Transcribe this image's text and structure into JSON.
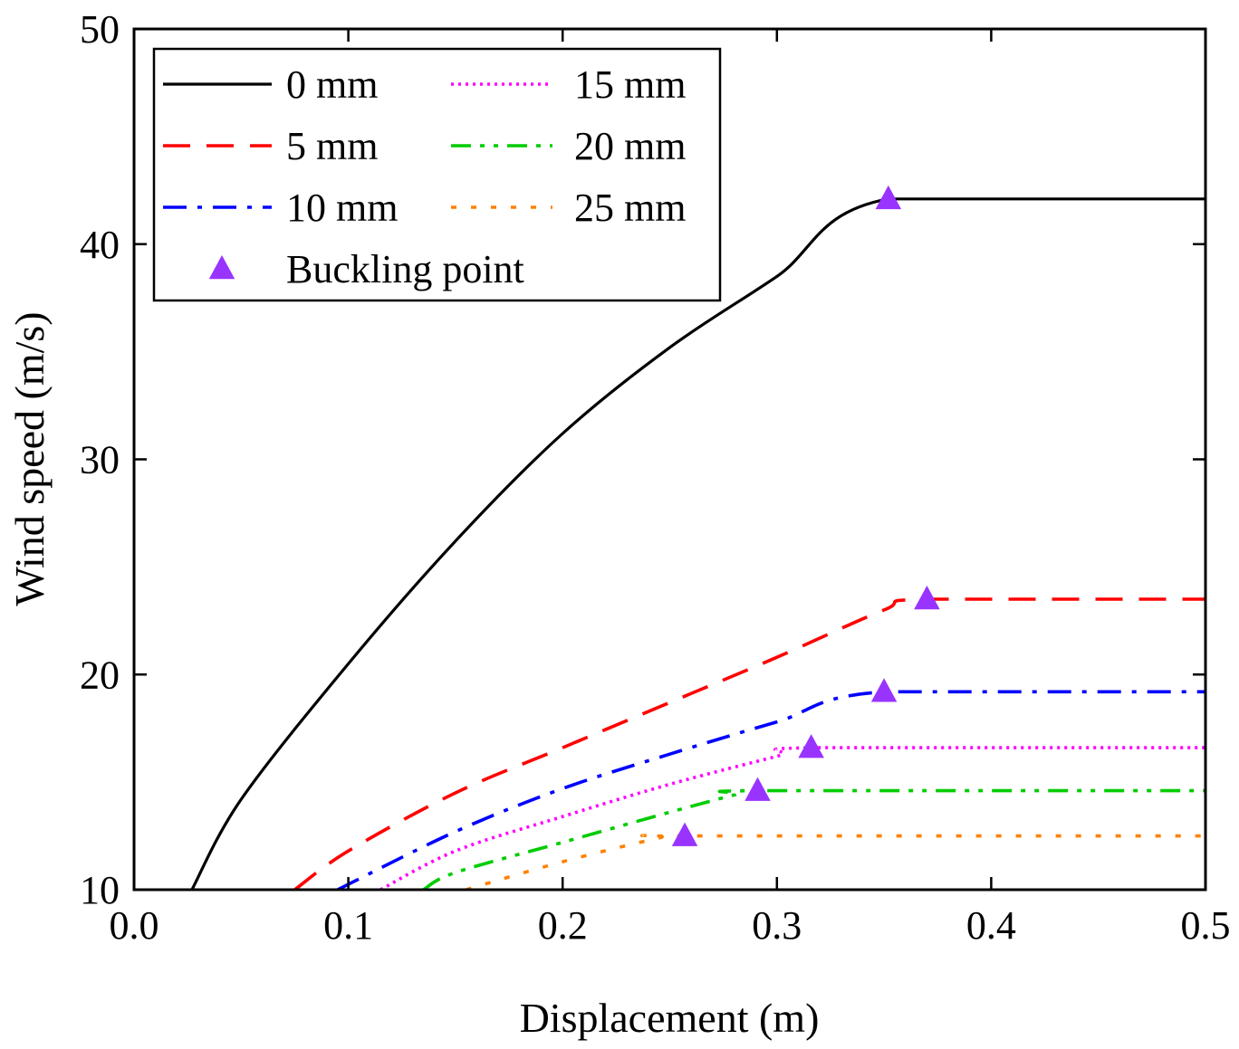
{
  "chart_data": {
    "type": "line",
    "title": "",
    "xlabel": "Displacement (m)",
    "ylabel": "Wind speed (m/s)",
    "xlim": [
      0.0,
      0.5
    ],
    "ylim": [
      10,
      50
    ],
    "xticks": [
      0.0,
      0.1,
      0.2,
      0.3,
      0.4,
      0.5
    ],
    "xtick_labels": [
      "0.0",
      "0.1",
      "0.2",
      "0.3",
      "0.4",
      "0.5"
    ],
    "yticks": [
      10,
      20,
      30,
      40,
      50
    ],
    "ytick_labels": [
      "10",
      "20",
      "30",
      "40",
      "50"
    ],
    "grid": false,
    "legend_position": "top-left",
    "series": [
      {
        "name": "0 mm",
        "color": "#000000",
        "style": "solid",
        "points": [
          [
            0.027,
            10
          ],
          [
            0.05,
            14.2
          ],
          [
            0.1,
            20.5
          ],
          [
            0.15,
            26.2
          ],
          [
            0.2,
            31.2
          ],
          [
            0.25,
            35.2
          ],
          [
            0.3,
            38.5
          ],
          [
            0.352,
            42.1
          ],
          [
            0.5,
            42.1
          ]
        ]
      },
      {
        "name": "5 mm",
        "color": "#ff0000",
        "style": "dash",
        "points": [
          [
            0.075,
            10
          ],
          [
            0.1,
            11.8
          ],
          [
            0.15,
            14.5
          ],
          [
            0.2,
            16.6
          ],
          [
            0.25,
            18.7
          ],
          [
            0.3,
            20.8
          ],
          [
            0.35,
            23
          ],
          [
            0.37,
            23.5
          ],
          [
            0.5,
            23.5
          ]
        ]
      },
      {
        "name": "10 mm",
        "color": "#0000ff",
        "style": "dashdot",
        "points": [
          [
            0.095,
            10
          ],
          [
            0.15,
            12.7
          ],
          [
            0.2,
            14.7
          ],
          [
            0.25,
            16.3
          ],
          [
            0.3,
            17.8
          ],
          [
            0.35,
            19.2
          ],
          [
            0.5,
            19.2
          ]
        ]
      },
      {
        "name": "15 mm",
        "color": "#ff00ff",
        "style": "dot",
        "points": [
          [
            0.115,
            10
          ],
          [
            0.15,
            11.8
          ],
          [
            0.2,
            13.4
          ],
          [
            0.25,
            14.9
          ],
          [
            0.3,
            16.2
          ],
          [
            0.316,
            16.6
          ],
          [
            0.5,
            16.6
          ]
        ]
      },
      {
        "name": "20 mm",
        "color": "#00cc00",
        "style": "dashdotdot",
        "points": [
          [
            0.135,
            10
          ],
          [
            0.15,
            10.8
          ],
          [
            0.2,
            12.2
          ],
          [
            0.25,
            13.6
          ],
          [
            0.28,
            14.4
          ],
          [
            0.291,
            14.6
          ],
          [
            0.5,
            14.6
          ]
        ]
      },
      {
        "name": "25 mm",
        "color": "#ff8000",
        "style": "sparse-dot",
        "points": [
          [
            0.155,
            10
          ],
          [
            0.2,
            11.3
          ],
          [
            0.245,
            12.4
          ],
          [
            0.257,
            12.5
          ],
          [
            0.5,
            12.5
          ]
        ]
      }
    ],
    "buckling_points": {
      "name": "Buckling point",
      "color": "#9933ff",
      "points": [
        [
          0.352,
          42.1
        ],
        [
          0.37,
          23.5
        ],
        [
          0.35,
          19.2
        ],
        [
          0.316,
          16.6
        ],
        [
          0.291,
          14.6
        ],
        [
          0.257,
          12.5
        ]
      ]
    }
  }
}
